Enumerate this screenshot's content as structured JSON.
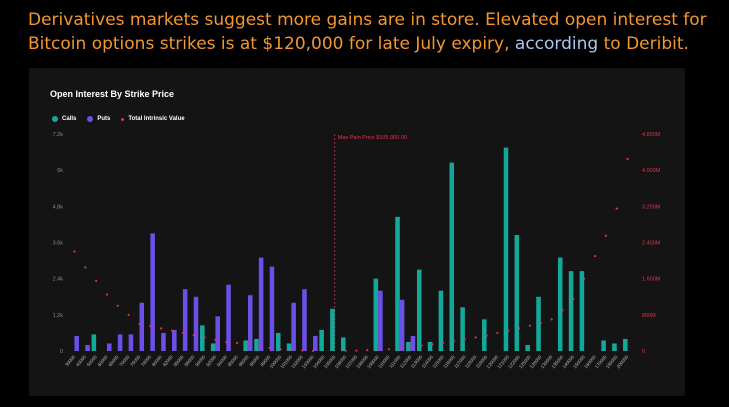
{
  "caption": {
    "text_before": "Derivatives markets suggest more gains are in store. Elevated open interest for Bitcoin options strikes is at $120,000 for late July expiry, ",
    "link_text": "according",
    "text_after": " to Deribit."
  },
  "colors": {
    "calls": "#14a89a",
    "puts": "#6b4fe6",
    "intrinsic": "#e0334f",
    "pain": "#c0334f"
  },
  "chart_data": {
    "type": "bar",
    "title": "Open Interest By Strike Price",
    "legend": [
      "Calls",
      "Puts",
      "Total Intrinsic Value"
    ],
    "legend_position": "top-left",
    "annotation": "Max Pain Price $105,000.00",
    "annotation_category": "105000",
    "categories": [
      "30000",
      "40000",
      "50000",
      "60000",
      "65000",
      "70000",
      "75000",
      "78000",
      "80000",
      "82000",
      "85000",
      "88000",
      "90000",
      "92000",
      "94000",
      "95000",
      "96000",
      "98000",
      "99000",
      "100000",
      "101000",
      "102000",
      "103000",
      "104000",
      "105000",
      "106000",
      "107000",
      "108000",
      "109000",
      "110000",
      "111000",
      "112000",
      "113000",
      "114000",
      "115000",
      "116000",
      "117000",
      "118000",
      "119000",
      "120000",
      "121000",
      "122000",
      "125000",
      "128000",
      "130000",
      "135000",
      "140000",
      "150000",
      "160000",
      "170000",
      "180000",
      "200000"
    ],
    "tick_labels": [
      "30000",
      "40000",
      "50000",
      "60000",
      "65000",
      "70000",
      "75000",
      "78000",
      "80000",
      "82000",
      "85000",
      "88000",
      "90000",
      "92000",
      "94000",
      "95000",
      "96000",
      "98000",
      "99000",
      "100000",
      "101000",
      "102000",
      "103000",
      "104000",
      "105000",
      "106000",
      "107000",
      "108000",
      "109000",
      "110000",
      "111000",
      "112000",
      "113000",
      "114000",
      "115000",
      "116000",
      "117000",
      "118000",
      "119000",
      "120000",
      "121000",
      "122000",
      "125000",
      "128000",
      "130000",
      "135000",
      "140000",
      "150000",
      "160000",
      "170000",
      "180000",
      "200000"
    ],
    "series": [
      {
        "name": "Calls",
        "values": [
          0,
          0,
          550,
          0,
          0,
          0,
          0,
          0,
          0,
          0,
          0,
          0,
          850,
          250,
          0,
          0,
          350,
          400,
          0,
          600,
          250,
          0,
          0,
          700,
          1400,
          450,
          0,
          0,
          2400,
          0,
          4450,
          300,
          2700,
          300,
          2000,
          6250,
          1450,
          0,
          1050,
          0,
          6750,
          3850,
          200,
          1800,
          0,
          3100,
          2650,
          2650,
          0,
          350,
          250,
          400
        ]
      },
      {
        "name": "Puts",
        "values": [
          500,
          200,
          0,
          250,
          550,
          550,
          1600,
          3900,
          600,
          700,
          2050,
          1800,
          0,
          1150,
          2200,
          0,
          1850,
          3100,
          2800,
          0,
          1600,
          2050,
          500,
          0,
          0,
          0,
          0,
          0,
          2000,
          0,
          1700,
          500,
          0,
          0,
          0,
          0,
          0,
          0,
          0,
          0,
          0,
          0,
          0,
          0,
          0,
          0,
          0,
          0,
          0,
          0,
          0,
          0
        ]
      },
      {
        "name": "Total Intrinsic Value",
        "values": [
          2200,
          1850,
          1550,
          1250,
          1000,
          800,
          600,
          550,
          500,
          450,
          400,
          350,
          300,
          250,
          200,
          180,
          150,
          100,
          70,
          40,
          20,
          10,
          5,
          0,
          0,
          5,
          10,
          20,
          30,
          40,
          60,
          90,
          120,
          150,
          180,
          220,
          260,
          300,
          340,
          400,
          450,
          500,
          560,
          620,
          700,
          900,
          1150,
          1600,
          2100,
          2550,
          3150,
          4250
        ]
      }
    ],
    "y_left": {
      "ticks": [
        0,
        1200,
        2400,
        3600,
        4800,
        6000,
        7200
      ],
      "labels": [
        "0",
        "1.2k",
        "2.4k",
        "3.6k",
        "4.8k",
        "6k",
        "7.2k"
      ],
      "range": [
        0,
        7200
      ]
    },
    "y_right": {
      "ticks": [
        0,
        800,
        1600,
        2400,
        3200,
        4000,
        4800
      ],
      "labels": [
        "0",
        "800M",
        "1.600M",
        "2.400M",
        "3.200M",
        "4.000M",
        "4.800M"
      ],
      "range": [
        0,
        4800
      ]
    },
    "grid": false
  }
}
